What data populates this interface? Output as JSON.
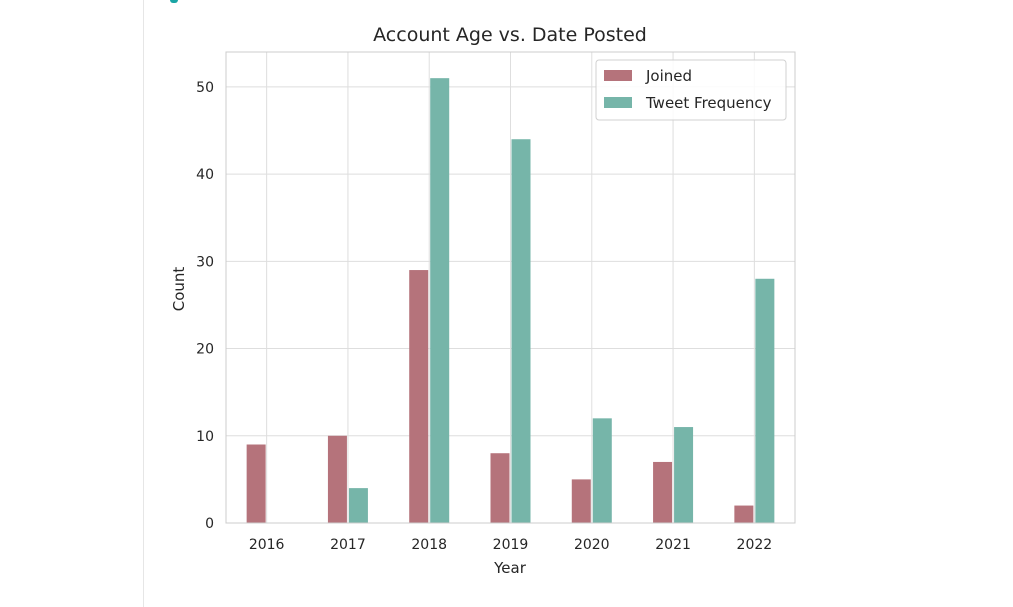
{
  "chart_data": {
    "type": "bar",
    "title": "Account Age vs. Date Posted",
    "xlabel": "Year",
    "ylabel": "Count",
    "categories": [
      "2016",
      "2017",
      "2018",
      "2019",
      "2020",
      "2021",
      "2022"
    ],
    "series": [
      {
        "name": "Joined",
        "color": "#b5737b",
        "values": [
          9,
          10,
          29,
          8,
          5,
          7,
          2
        ]
      },
      {
        "name": "Tweet Frequency",
        "color": "#76b5a9",
        "values": [
          0,
          4,
          51,
          44,
          12,
          11,
          28
        ]
      }
    ],
    "ylim": [
      0,
      54
    ],
    "yticks": [
      0,
      10,
      20,
      30,
      40,
      50
    ],
    "grid": true,
    "legend_position": "top-right"
  }
}
